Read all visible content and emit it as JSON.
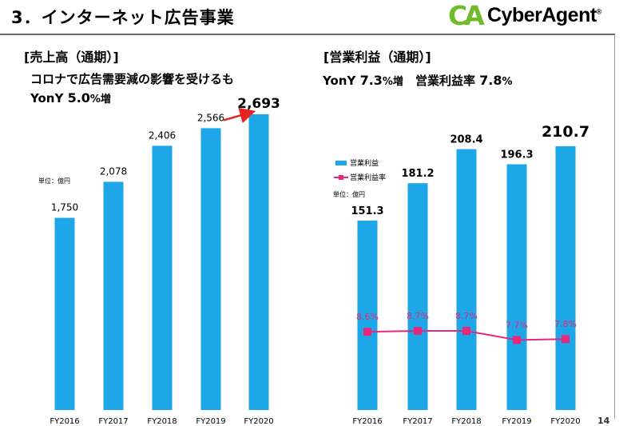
{
  "header": {
    "title": "3．インターネット広告事業",
    "logo_text": "CyberAgent",
    "logo_mark": "CA",
    "logo_registered": "®"
  },
  "colors": {
    "bar": "#1ea7e8",
    "line": "#e6277b",
    "arrow": "#e52420",
    "logo_green": "#6fbb2a"
  },
  "left": {
    "section_label": "[売上高（通期）]",
    "subtitle_line1": "コロナで広告需要減の影響を受けるも",
    "yony_prefix": "YonY ",
    "yony_value": "5.0",
    "yony_suffix": "%増"
  },
  "right": {
    "section_label": "[営業利益（通期）]",
    "yony_prefix": "YonY ",
    "yony_value": "7.3",
    "yony_suffix": "%増",
    "margin_label": "　営業利益率 ",
    "margin_value": "7.8",
    "margin_suffix": "%"
  },
  "page_number": "14",
  "chart_data": [
    {
      "type": "bar",
      "title": "売上高（通期）",
      "unit_label": "単位：億円",
      "categories": [
        "FY2016",
        "FY2017",
        "FY2018",
        "FY2019",
        "FY2020"
      ],
      "values": [
        1750,
        2078,
        2406,
        2566,
        2693
      ],
      "value_labels": [
        "1,750",
        "2,078",
        "2,406",
        "2,566",
        "2,693"
      ],
      "ylim": [
        0,
        2700
      ],
      "highlight_growth": "FY2019 to FY2020",
      "legend": []
    },
    {
      "type": "bar",
      "title": "営業利益（通期）",
      "unit_label": "単位：億円",
      "categories": [
        "FY2016",
        "FY2017",
        "FY2018",
        "FY2019",
        "FY2020"
      ],
      "series": [
        {
          "name": "営業利益",
          "type": "bar",
          "values": [
            151.3,
            181.2,
            208.4,
            196.3,
            210.7
          ],
          "value_labels": [
            "151.3",
            "181.2",
            "208.4",
            "196.3",
            "210.7"
          ]
        },
        {
          "name": "営業利益率",
          "type": "line",
          "values": [
            8.6,
            8.7,
            8.7,
            7.7,
            7.8
          ],
          "value_labels": [
            "8.6%",
            "8.7%",
            "8.7%",
            "7.7%",
            "7.8%"
          ]
        }
      ],
      "ylim": [
        0,
        210.7
      ],
      "rate_ylim": [
        0,
        29
      ],
      "legend_position": "top-left"
    }
  ]
}
